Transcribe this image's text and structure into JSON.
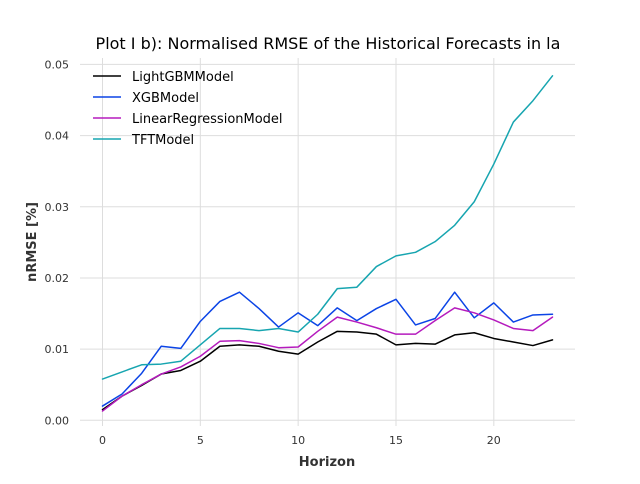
{
  "chart_data": {
    "type": "line",
    "title": "Plot I b): Normalised RMSE of the Historical Forecasts in la",
    "xlabel": "Horizon",
    "ylabel": "nRMSE [%]",
    "xlim": [
      -1.15,
      24.15
    ],
    "ylim": [
      -0.0008,
      0.0509
    ],
    "x": [
      0,
      1,
      2,
      3,
      4,
      5,
      6,
      7,
      8,
      9,
      10,
      11,
      12,
      13,
      14,
      15,
      16,
      17,
      18,
      19,
      20,
      21,
      22,
      23
    ],
    "x_ticks": [
      0,
      5,
      10,
      15,
      20
    ],
    "x_tick_labels": [
      "0",
      "5",
      "10",
      "15",
      "20"
    ],
    "y_ticks": [
      0.0,
      0.01,
      0.02,
      0.03,
      0.04,
      0.05
    ],
    "y_tick_labels": [
      "0.00",
      "0.01",
      "0.02",
      "0.03",
      "0.04",
      "0.05"
    ],
    "grid": true,
    "legend_position": "top-left",
    "series": [
      {
        "name": "LightGBMModel",
        "color": "#000000",
        "values": [
          0.0015,
          0.0034,
          0.0049,
          0.0065,
          0.007,
          0.0083,
          0.0104,
          0.0106,
          0.0104,
          0.0097,
          0.0093,
          0.011,
          0.0125,
          0.0124,
          0.0121,
          0.0106,
          0.0108,
          0.0107,
          0.012,
          0.0123,
          0.0115,
          0.011,
          0.0105,
          0.0113
        ]
      },
      {
        "name": "XGBModel",
        "color": "#0b44e6",
        "values": [
          0.002,
          0.0037,
          0.0066,
          0.0104,
          0.0101,
          0.0139,
          0.0167,
          0.018,
          0.0157,
          0.0131,
          0.0151,
          0.0133,
          0.0158,
          0.014,
          0.0157,
          0.017,
          0.0134,
          0.0143,
          0.018,
          0.0144,
          0.0165,
          0.0138,
          0.0148,
          0.0149
        ]
      },
      {
        "name": "LinearRegressionModel",
        "color": "#b51bbd",
        "values": [
          0.0013,
          0.0034,
          0.005,
          0.0065,
          0.0075,
          0.009,
          0.0111,
          0.0112,
          0.0108,
          0.0102,
          0.0103,
          0.0125,
          0.0145,
          0.0138,
          0.013,
          0.0121,
          0.0121,
          0.014,
          0.0158,
          0.0151,
          0.0141,
          0.0129,
          0.0126,
          0.0145
        ]
      },
      {
        "name": "TFTModel",
        "color": "#17a5b0",
        "values": [
          0.0058,
          0.0068,
          0.0078,
          0.0079,
          0.0083,
          0.0106,
          0.0129,
          0.0129,
          0.0126,
          0.0129,
          0.0124,
          0.0149,
          0.0185,
          0.0187,
          0.0216,
          0.0231,
          0.0236,
          0.0251,
          0.0274,
          0.0307,
          0.036,
          0.0419,
          0.0449,
          0.0484
        ]
      }
    ]
  }
}
